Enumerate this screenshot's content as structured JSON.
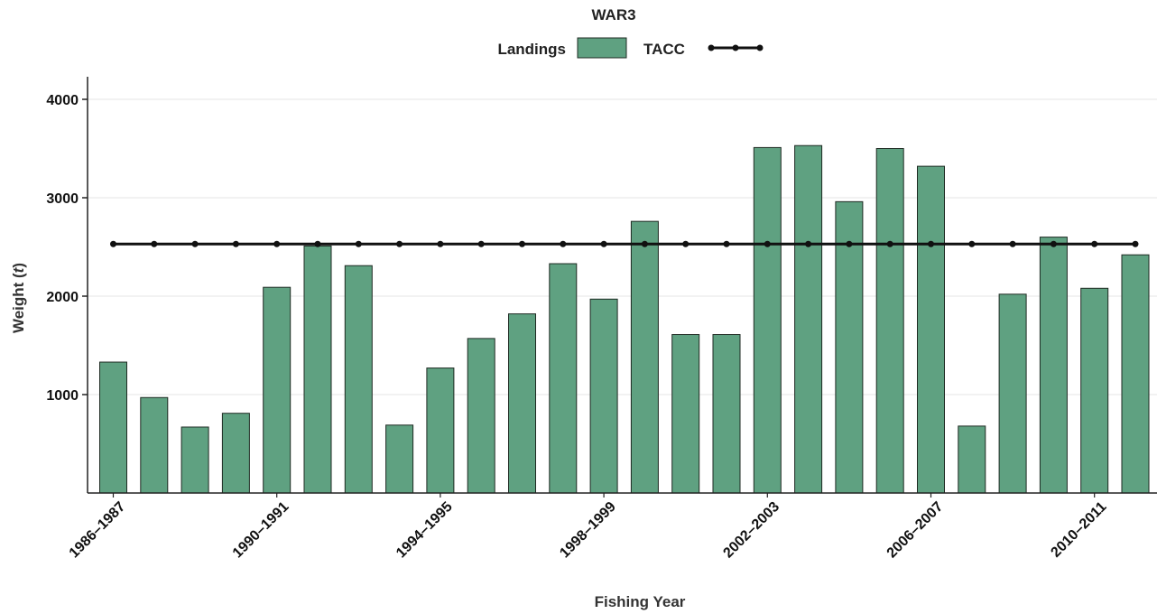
{
  "chart_data": {
    "type": "bar",
    "title": "WAR3",
    "xlabel": "Fishing Year",
    "ylabel_main": "Weight (",
    "ylabel_unit": "t",
    "ylabel_end": ")",
    "ylim": [
      0,
      4250
    ],
    "yticks": [
      1000,
      2000,
      3000,
      4000
    ],
    "categories": [
      "1986–1987",
      "1987–1988",
      "1988–1989",
      "1989–1990",
      "1990–1991",
      "1991–1992",
      "1992–1993",
      "1993–1994",
      "1994–1995",
      "1995–1996",
      "1996–1997",
      "1997–1998",
      "1998–1999",
      "1999–2000",
      "2000–2001",
      "2001–2002",
      "2002–2003",
      "2003–2004",
      "2004–2005",
      "2005–2006",
      "2006–2007",
      "2007–2008",
      "2008–2009",
      "2009–2010",
      "2010–2011",
      "2011–2012"
    ],
    "tick_labels": [
      "1986–1987",
      "1990–1991",
      "1994–1995",
      "1998–1999",
      "2002–2003",
      "2006–2007",
      "2010–2011"
    ],
    "tick_indices": [
      0,
      4,
      8,
      12,
      16,
      20,
      24
    ],
    "series": [
      {
        "name": "Landings",
        "kind": "bar",
        "color": "#5fa181",
        "values": [
          1330,
          970,
          670,
          810,
          2090,
          2510,
          2310,
          690,
          1270,
          1570,
          1820,
          2330,
          1970,
          2760,
          1610,
          1610,
          3510,
          3530,
          2960,
          3500,
          3320,
          680,
          2020,
          2600,
          2080,
          2420
        ]
      },
      {
        "name": "TACC",
        "kind": "line",
        "color": "#111111",
        "values": [
          2530,
          2530,
          2530,
          2530,
          2530,
          2530,
          2530,
          2530,
          2530,
          2530,
          2530,
          2530,
          2530,
          2530,
          2530,
          2530,
          2530,
          2530,
          2530,
          2530,
          2530,
          2530,
          2530,
          2530,
          2530,
          2530
        ]
      }
    ],
    "legend": {
      "position": "top-center",
      "items": [
        "Landings",
        "TACC"
      ]
    },
    "grid": true
  }
}
